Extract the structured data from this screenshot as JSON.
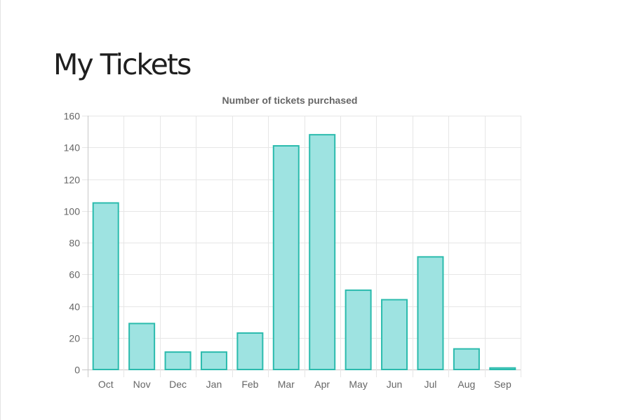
{
  "page": {
    "title": "My Tickets"
  },
  "chart_data": {
    "type": "bar",
    "title": "Number of tickets purchased",
    "xlabel": "",
    "ylabel": "",
    "categories": [
      "Oct",
      "Nov",
      "Dec",
      "Jan",
      "Feb",
      "Mar",
      "Apr",
      "May",
      "Jun",
      "Jul",
      "Aug",
      "Sep"
    ],
    "values": [
      105,
      29,
      11,
      11,
      23,
      141,
      148,
      50,
      44,
      71,
      13,
      1
    ],
    "ylim": [
      0,
      160
    ],
    "yticks": [
      0,
      20,
      40,
      60,
      80,
      100,
      120,
      140,
      160
    ],
    "grid": true,
    "legend": "none",
    "colors": {
      "bar_fill": "#9ee3e1",
      "bar_stroke": "#2bbbad",
      "grid": "#e6e6e6",
      "axis": "#c8c8c8",
      "text": "#666666"
    }
  }
}
